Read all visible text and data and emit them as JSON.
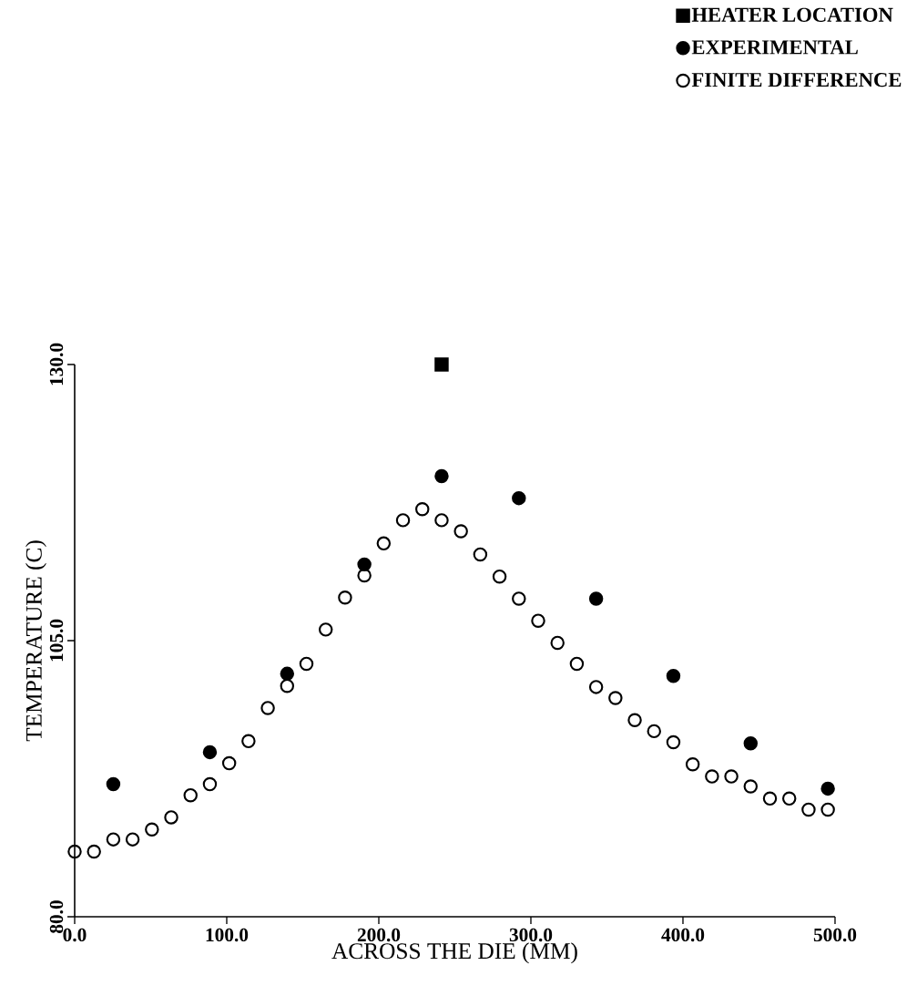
{
  "chart_data": {
    "type": "scatter",
    "xlabel": "ACROSS THE DIE (MM)",
    "ylabel": "TEMPERATURE (C)",
    "xlim": [
      0,
      500
    ],
    "ylim": [
      80,
      130
    ],
    "xticks": [
      {
        "value": 0,
        "label": "0.0"
      },
      {
        "value": 100,
        "label": "100.0"
      },
      {
        "value": 200,
        "label": "200.0"
      },
      {
        "value": 300,
        "label": "300.0"
      },
      {
        "value": 400,
        "label": "400.0"
      },
      {
        "value": 500,
        "label": "500.0"
      }
    ],
    "yticks": [
      {
        "value": 80,
        "label": "80.0"
      },
      {
        "value": 105,
        "label": "105.0"
      },
      {
        "value": 130,
        "label": "130.0"
      }
    ],
    "legend": "top right",
    "series": [
      {
        "name": "HEATER LOCATION",
        "color": "#000000",
        "marker": "square",
        "x": [
          241.3
        ],
        "values": [
          130
        ]
      },
      {
        "name": "EXPERIMENTAL",
        "color": "#000000",
        "marker": "circle",
        "x": [
          25.4,
          88.9,
          139.7,
          190.5,
          241.3,
          292.1,
          342.9,
          393.7,
          444.5,
          495.3
        ],
        "values": [
          92.0,
          94.9,
          102.0,
          111.9,
          119.9,
          117.9,
          108.8,
          101.8,
          95.7,
          91.6
        ]
      },
      {
        "name": "FINITE DIFFERENCE",
        "color": "#000000",
        "marker": "open circle",
        "x": [
          0,
          12.7,
          25.4,
          38.1,
          50.8,
          63.5,
          76.2,
          88.9,
          101.6,
          114.3,
          127,
          139.7,
          152.4,
          165.1,
          177.8,
          190.5,
          203.2,
          215.9,
          228.6,
          241.3,
          254,
          266.7,
          279.4,
          292.1,
          304.8,
          317.5,
          330.2,
          342.9,
          355.6,
          368.3,
          381,
          393.7,
          406.4,
          419.1,
          431.8,
          444.5,
          457.2,
          469.9,
          482.6,
          495.3
        ],
        "values": [
          85.9,
          85.9,
          87.0,
          87.0,
          87.9,
          89.0,
          91.0,
          92.0,
          93.9,
          95.9,
          98.9,
          100.9,
          102.9,
          106.0,
          108.9,
          110.9,
          113.8,
          115.9,
          116.9,
          115.9,
          114.9,
          112.8,
          110.8,
          108.8,
          106.8,
          104.8,
          102.9,
          100.8,
          99.8,
          97.8,
          96.8,
          95.8,
          93.8,
          92.7,
          92.7,
          91.8,
          90.7,
          90.7,
          89.7,
          89.7
        ]
      }
    ]
  }
}
